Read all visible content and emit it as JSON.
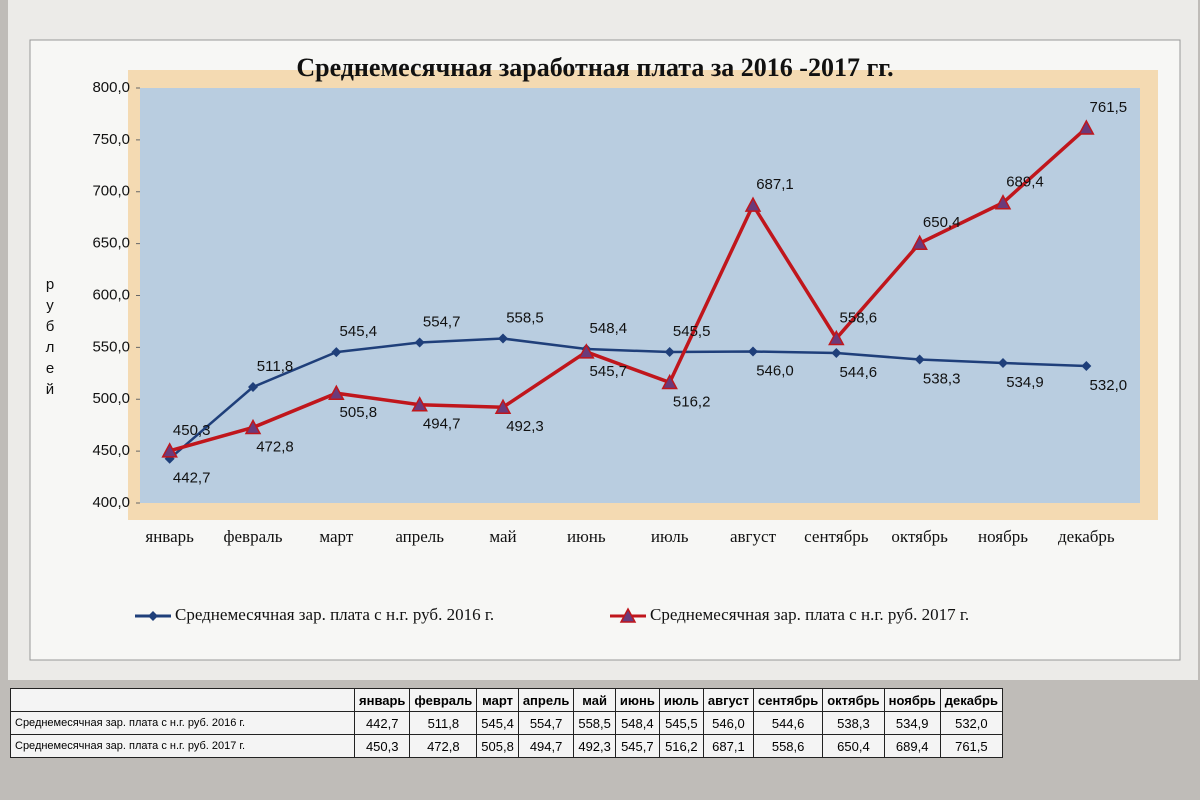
{
  "chart_data": {
    "type": "line",
    "title": "Среднемесячная заработная плата  за 2016 -2017 гг.",
    "y_label": "рублей",
    "categories": [
      "январь",
      "февраль",
      "март",
      "апрель",
      "май",
      "июнь",
      "июль",
      "август",
      "сентябрь",
      "октябрь",
      "ноябрь",
      "декабрь"
    ],
    "ylim": [
      400,
      800
    ],
    "yticks": [
      {
        "value": 400,
        "label": "400,0"
      },
      {
        "value": 450,
        "label": "450,0"
      },
      {
        "value": 500,
        "label": "500,0"
      },
      {
        "value": 550,
        "label": "550,0"
      },
      {
        "value": 600,
        "label": "600,0"
      },
      {
        "value": 650,
        "label": "650,0"
      },
      {
        "value": 700,
        "label": "700,0"
      },
      {
        "value": 750,
        "label": "750,0"
      },
      {
        "value": 800,
        "label": "800,0"
      }
    ],
    "grid": false,
    "legend": "bottom",
    "series": [
      {
        "name": "Среднемесячная зар. плата с н.г. руб. 2016 г.",
        "color": "#1f3f7a",
        "marker": "diamond",
        "values": [
          442.7,
          511.8,
          545.4,
          554.7,
          558.5,
          548.4,
          545.5,
          546.0,
          544.6,
          538.3,
          534.9,
          532.0
        ],
        "value_labels": [
          "442,7",
          "511,8",
          "545,4",
          "554,7",
          "558,5",
          "548,4",
          "545,5",
          "546,0",
          "544,6",
          "538,3",
          "534,9",
          "532,0"
        ]
      },
      {
        "name": "Среднемесячная зар. плата с н.г. руб. 2017 г.",
        "color": "#c0161c",
        "marker": "triangle",
        "values": [
          450.3,
          472.8,
          505.8,
          494.7,
          492.3,
          545.7,
          516.2,
          687.1,
          558.6,
          650.4,
          689.4,
          761.5
        ],
        "value_labels": [
          "450,3",
          "472,8",
          "505,8",
          "494,7",
          "492,3",
          "545,7",
          "516,2",
          "687,1",
          "558,6",
          "650,4",
          "689,4",
          "761,5"
        ]
      }
    ]
  }
}
